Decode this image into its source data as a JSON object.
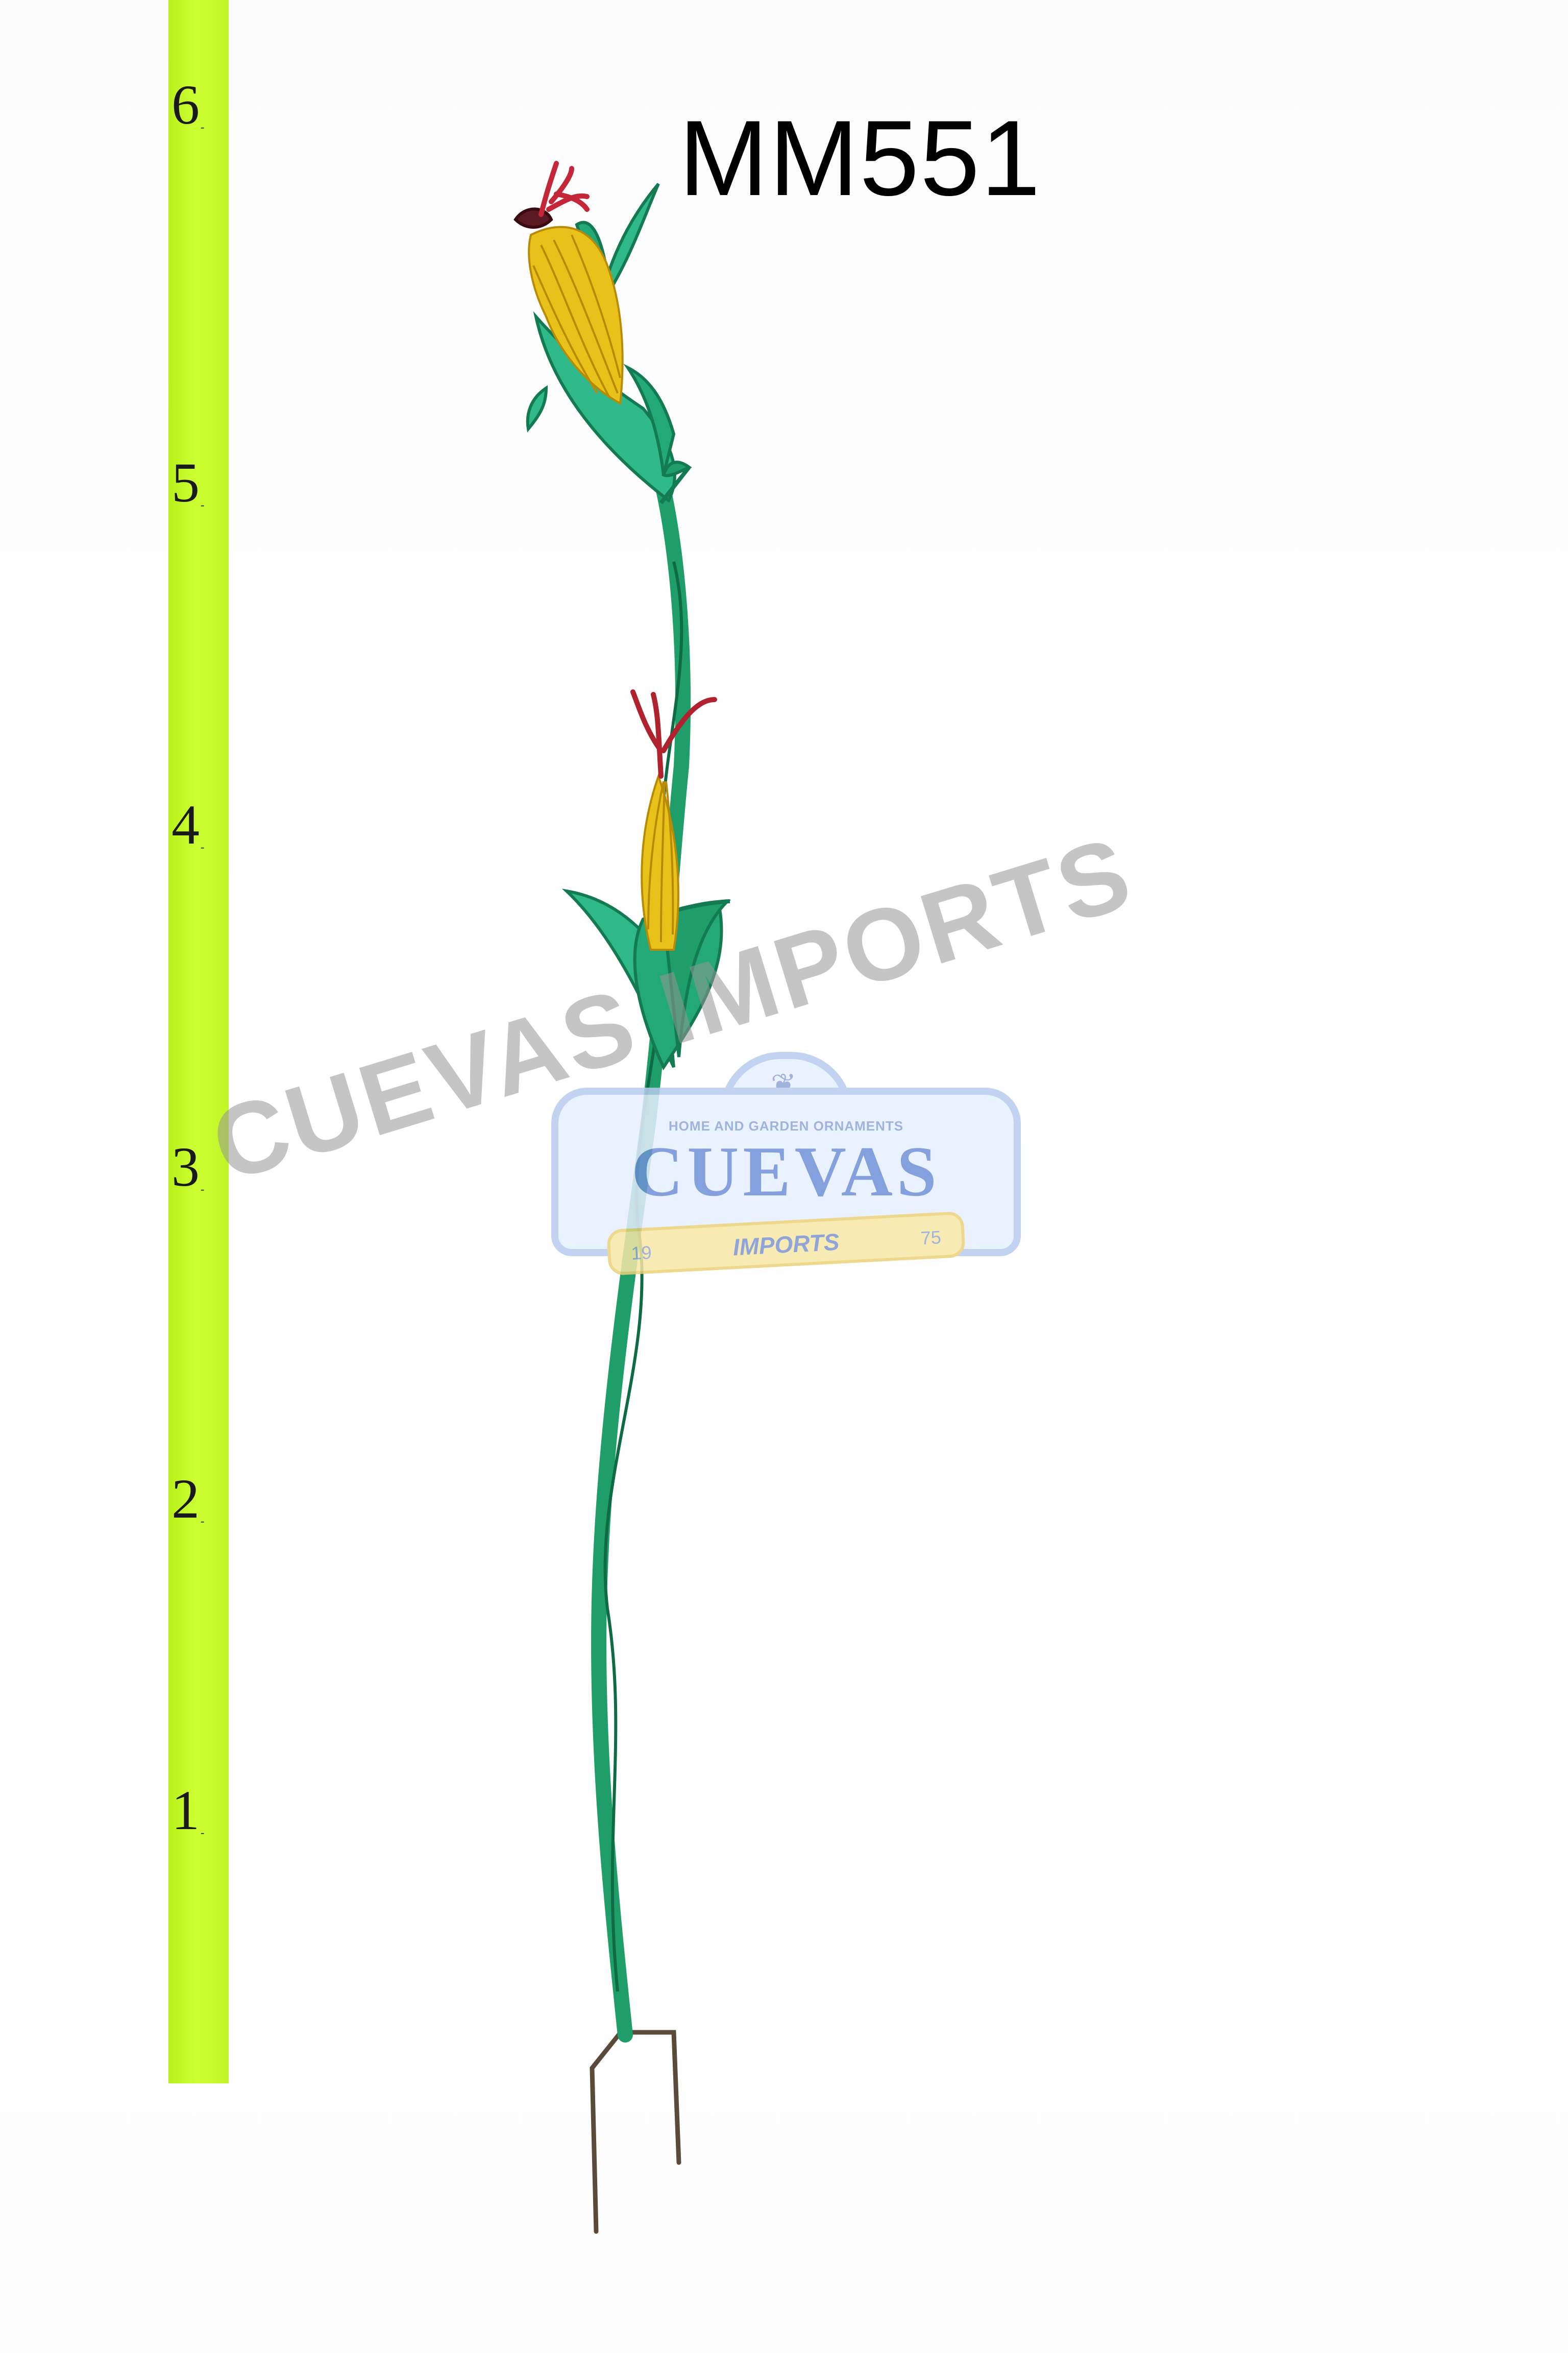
{
  "model_code": "MM551",
  "ruler": {
    "marks": [
      "6",
      "5",
      "4",
      "3",
      "2",
      "1"
    ],
    "unit": "ft"
  },
  "watermark": {
    "text": "CUEVAS IMPORTS"
  },
  "logo": {
    "tagline": "HOME AND GARDEN ORNAMENTS",
    "name": "CUEVAS",
    "ribbon": "IMPORTS",
    "year_left": "19",
    "year_right": "75"
  },
  "colors": {
    "ruler": "#ccff33",
    "stalk": "#1f9e6a",
    "leaf": "#2fb88a",
    "kernel": "#e8c21a",
    "tassel": "#b0222e"
  }
}
